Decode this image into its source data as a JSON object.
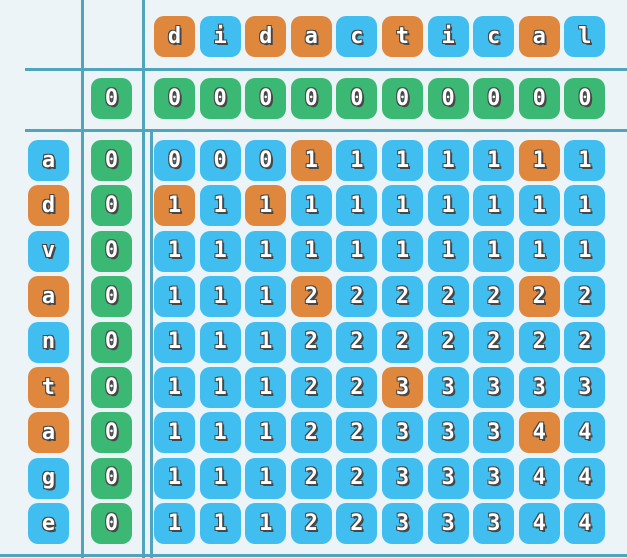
{
  "palette": {
    "background": "#edf4f8",
    "line": "#4fa5bd",
    "blue": "#3fbeef",
    "orange": "#e0873e",
    "green": "#3bb873",
    "text": "#ffffff",
    "text_outline": "#474747"
  },
  "top_word": {
    "word": "didactical",
    "letters": [
      {
        "ch": "d",
        "tone": "orange"
      },
      {
        "ch": "i",
        "tone": "blue"
      },
      {
        "ch": "d",
        "tone": "orange"
      },
      {
        "ch": "a",
        "tone": "orange"
      },
      {
        "ch": "c",
        "tone": "blue"
      },
      {
        "ch": "t",
        "tone": "orange"
      },
      {
        "ch": "i",
        "tone": "blue"
      },
      {
        "ch": "c",
        "tone": "blue"
      },
      {
        "ch": "a",
        "tone": "orange"
      },
      {
        "ch": "l",
        "tone": "blue"
      }
    ]
  },
  "left_word": {
    "word": "advantage",
    "letters": [
      {
        "ch": "a",
        "tone": "blue"
      },
      {
        "ch": "d",
        "tone": "orange"
      },
      {
        "ch": "v",
        "tone": "blue"
      },
      {
        "ch": "a",
        "tone": "orange"
      },
      {
        "ch": "n",
        "tone": "blue"
      },
      {
        "ch": "t",
        "tone": "orange"
      },
      {
        "ch": "a",
        "tone": "orange"
      },
      {
        "ch": "g",
        "tone": "blue"
      },
      {
        "ch": "e",
        "tone": "blue"
      }
    ]
  },
  "zero_corner": "0",
  "zero_row_values": [
    "0",
    "0",
    "0",
    "0",
    "0",
    "0",
    "0",
    "0",
    "0",
    "0"
  ],
  "zero_col_values": [
    "0",
    "0",
    "0",
    "0",
    "0",
    "0",
    "0",
    "0",
    "0"
  ],
  "matrix": {
    "values": [
      [
        "0",
        "0",
        "0",
        "1",
        "1",
        "1",
        "1",
        "1",
        "1",
        "1"
      ],
      [
        "1",
        "1",
        "1",
        "1",
        "1",
        "1",
        "1",
        "1",
        "1",
        "1"
      ],
      [
        "1",
        "1",
        "1",
        "1",
        "1",
        "1",
        "1",
        "1",
        "1",
        "1"
      ],
      [
        "1",
        "1",
        "1",
        "2",
        "2",
        "2",
        "2",
        "2",
        "2",
        "2"
      ],
      [
        "1",
        "1",
        "1",
        "2",
        "2",
        "2",
        "2",
        "2",
        "2",
        "2"
      ],
      [
        "1",
        "1",
        "1",
        "2",
        "2",
        "3",
        "3",
        "3",
        "3",
        "3"
      ],
      [
        "1",
        "1",
        "1",
        "2",
        "2",
        "3",
        "3",
        "3",
        "4",
        "4"
      ],
      [
        "1",
        "1",
        "1",
        "2",
        "2",
        "3",
        "3",
        "3",
        "4",
        "4"
      ],
      [
        "1",
        "1",
        "1",
        "2",
        "2",
        "3",
        "3",
        "3",
        "4",
        "4"
      ]
    ],
    "highlighted_cells": [
      [
        0,
        3
      ],
      [
        0,
        8
      ],
      [
        1,
        0
      ],
      [
        1,
        2
      ],
      [
        3,
        3
      ],
      [
        3,
        8
      ],
      [
        5,
        5
      ],
      [
        6,
        8
      ]
    ]
  }
}
